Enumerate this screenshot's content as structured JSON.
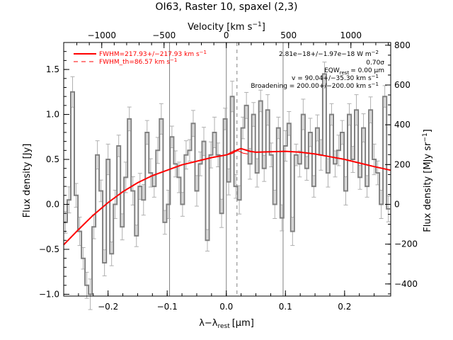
{
  "chart_data": {
    "type": "line",
    "title": "OI63, Raster 10, spaxel (2,3)",
    "xlabel_main": "λ−λ",
    "xlabel_sub": "rest",
    "xlabel_unit": "[μm]",
    "ylabel": "Flux density [Jy]",
    "top_label": "Velocity [km s",
    "top_label_sup": "−1",
    "top_label_end": "]",
    "right_label": "Flux density [MJy sr",
    "right_label_sup": "−1",
    "right_label_end": "]",
    "xlim": [
      -0.275,
      0.278
    ],
    "ylim": [
      -1.02,
      1.8
    ],
    "xticks": [
      -0.2,
      -0.1,
      0.0,
      0.1,
      0.2
    ],
    "xtick_labels": [
      "−0.2",
      "−0.1",
      "0.0",
      "0.1",
      "0.2"
    ],
    "yticks": [
      -1.0,
      -0.5,
      0.0,
      0.5,
      1.0,
      1.5
    ],
    "ytick_labels": [
      "−1.0",
      "−0.5",
      "0.0",
      "0.5",
      "1.0",
      "1.5"
    ],
    "top_ticks": [
      -1000,
      -500,
      0,
      500,
      1000
    ],
    "top_tick_labels": [
      "−1000",
      "−500",
      "0",
      "500",
      "1000"
    ],
    "right_ticks": [
      -400,
      -200,
      0,
      200,
      400,
      600,
      800
    ],
    "right_tick_labels": [
      "−400",
      "−200",
      "0",
      "200",
      "400",
      "600",
      "800"
    ],
    "vertical_lines": [
      -0.096,
      0.0,
      0.096
    ],
    "dashed_line": 0.018,
    "legend": {
      "solid": "FWHM=217.93+/−217.93 km s",
      "solid_sup": "−1",
      "dashed": "FWHM_th=86.57 km s",
      "dashed_sup": "−1"
    },
    "annotations": {
      "flux": "2.81e−18+/−1.97e−18 W m",
      "flux_sup": "−2",
      "sigma": "0.70σ",
      "eqw_label": "EQW",
      "eqw_sub": "rest",
      "eqw_value": "= 0.00 μm",
      "velocity": "v = 90.04+/−35.30 km s",
      "velocity_sup": "−1",
      "broadening": "Broadening = 200.00+/−200.00 km s",
      "broadening_sup": "−1"
    },
    "series": [
      {
        "color": "#808080",
        "x": [
          -0.272,
          -0.266,
          -0.26,
          -0.254,
          -0.248,
          -0.242,
          -0.236,
          -0.23,
          -0.224,
          -0.218,
          -0.212,
          -0.206,
          -0.2,
          -0.194,
          -0.188,
          -0.182,
          -0.176,
          -0.17,
          -0.164,
          -0.158,
          -0.152,
          -0.146,
          -0.14,
          -0.134,
          -0.128,
          -0.122,
          -0.116,
          -0.11,
          -0.104,
          -0.098,
          -0.092,
          -0.086,
          -0.08,
          -0.074,
          -0.068,
          -0.062,
          -0.056,
          -0.05,
          -0.044,
          -0.038,
          -0.032,
          -0.026,
          -0.02,
          -0.014,
          -0.008,
          -0.002,
          0.004,
          0.01,
          0.016,
          0.022,
          0.028,
          0.034,
          0.04,
          0.046,
          0.052,
          0.058,
          0.064,
          0.07,
          0.076,
          0.082,
          0.088,
          0.094,
          0.1,
          0.106,
          0.112,
          0.118,
          0.124,
          0.13,
          0.136,
          0.142,
          0.148,
          0.154,
          0.16,
          0.166,
          0.172,
          0.178,
          0.184,
          0.19,
          0.196,
          0.202,
          0.208,
          0.214,
          0.22,
          0.226,
          0.232,
          0.238,
          0.244,
          0.25,
          0.256,
          0.262,
          0.268,
          0.274
        ],
        "y": [
          -0.2,
          0.05,
          1.25,
          0.1,
          -0.3,
          -0.6,
          -0.9,
          -1.0,
          -0.25,
          0.55,
          0.15,
          -0.65,
          0.5,
          -0.55,
          0.0,
          0.65,
          -0.25,
          0.3,
          0.95,
          0.15,
          -0.35,
          0.2,
          0.05,
          0.8,
          0.35,
          0.2,
          0.6,
          0.95,
          -0.2,
          0.0,
          0.75,
          0.45,
          0.3,
          0.0,
          0.55,
          0.6,
          0.9,
          0.15,
          0.45,
          0.7,
          -0.4,
          0.55,
          0.8,
          0.55,
          -0.1,
          0.95,
          0.25,
          1.2,
          0.2,
          0.05,
          0.85,
          1.1,
          0.45,
          1.0,
          0.35,
          1.15,
          0.4,
          1.05,
          0.55,
          0.0,
          0.85,
          -0.15,
          0.65,
          0.9,
          -0.3,
          0.55,
          0.45,
          1.0,
          0.4,
          0.8,
          0.2,
          0.85,
          0.55,
          1.45,
          0.35,
          1.0,
          0.45,
          0.6,
          0.8,
          0.15,
          1.0,
          0.5,
          1.05,
          0.3,
          0.85,
          0.2,
          1.05,
          0.5,
          0.35,
          0.0,
          1.2,
          -0.05
        ]
      },
      {
        "color": "#ff0000",
        "x": [
          -0.275,
          -0.25,
          -0.225,
          -0.2,
          -0.175,
          -0.15,
          -0.125,
          -0.1,
          -0.075,
          -0.05,
          -0.025,
          0.0,
          0.01,
          0.02,
          0.025,
          0.03,
          0.04,
          0.05,
          0.075,
          0.1,
          0.125,
          0.15,
          0.175,
          0.2,
          0.225,
          0.25,
          0.278
        ],
        "y": [
          -0.45,
          -0.28,
          -0.12,
          0.02,
          0.14,
          0.24,
          0.32,
          0.38,
          0.44,
          0.48,
          0.52,
          0.55,
          0.57,
          0.61,
          0.62,
          0.61,
          0.59,
          0.58,
          0.585,
          0.59,
          0.58,
          0.56,
          0.53,
          0.5,
          0.46,
          0.42,
          0.38
        ]
      },
      {
        "color": "#ff0000",
        "x": [
          0.0,
          0.008,
          0.014,
          0.018,
          0.022,
          0.028,
          0.036
        ],
        "y": [
          0.55,
          0.58,
          0.6,
          0.6,
          0.59,
          0.57,
          0.56
        ]
      }
    ]
  }
}
